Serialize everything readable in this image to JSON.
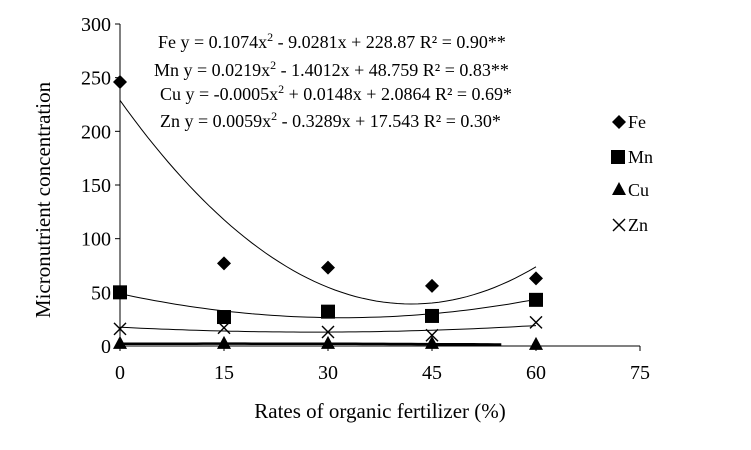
{
  "chart_data": {
    "type": "scatter",
    "xlabel": "Rates of organic fertilizer  (%)",
    "ylabel": "Micronutrient concentration",
    "xlim": [
      0,
      75
    ],
    "ylim": [
      0,
      300
    ],
    "xticks": [
      0,
      15,
      30,
      45,
      60,
      75
    ],
    "yticks": [
      0,
      50,
      100,
      150,
      200,
      250,
      300
    ],
    "grid": false,
    "legend_position": "right",
    "x": [
      0,
      15,
      30,
      45,
      60
    ],
    "series": [
      {
        "name": "Fe",
        "marker": "diamond",
        "values": [
          246,
          77,
          73,
          56,
          63
        ],
        "trendline": {
          "a": 0.1074,
          "b": -9.0281,
          "c": 228.87,
          "xmax": 60
        },
        "equation": {
          "name": "Fe",
          "left": "y = 0.1074x",
          "sup": "2",
          "right": " - 9.0281x + 228.87 R² = 0.90**"
        }
      },
      {
        "name": "Mn",
        "marker": "square",
        "values": [
          50,
          27,
          32,
          28,
          43
        ],
        "trendline": {
          "a": 0.0219,
          "b": -1.4012,
          "c": 48.759,
          "xmax": 60
        },
        "equation": {
          "name": "Mn",
          "left": "y = 0.0219x",
          "sup": "2",
          "right": " - 1.4012x + 48.759 R² = 0.83**"
        }
      },
      {
        "name": "Cu",
        "marker": "triangle",
        "values": [
          2,
          2,
          2,
          2,
          1
        ],
        "trendline": {
          "a": -0.0005,
          "b": 0.0148,
          "c": 2.0864,
          "xmax": 55
        },
        "equation": {
          "name": "Cu",
          "left": "y = -0.0005x",
          "sup": "2",
          "right": " + 0.0148x + 2.0864 R² = 0.69*"
        }
      },
      {
        "name": "Zn",
        "marker": "x",
        "values": [
          16,
          17,
          13,
          10,
          22
        ],
        "trendline": {
          "a": 0.0059,
          "b": -0.3289,
          "c": 17.543,
          "xmax": 60
        },
        "equation": {
          "name": "Zn",
          "left": "y = 0.0059x",
          "sup": "2",
          "right": " - 0.3289x + 17.543 R² = 0.30*"
        }
      }
    ]
  }
}
